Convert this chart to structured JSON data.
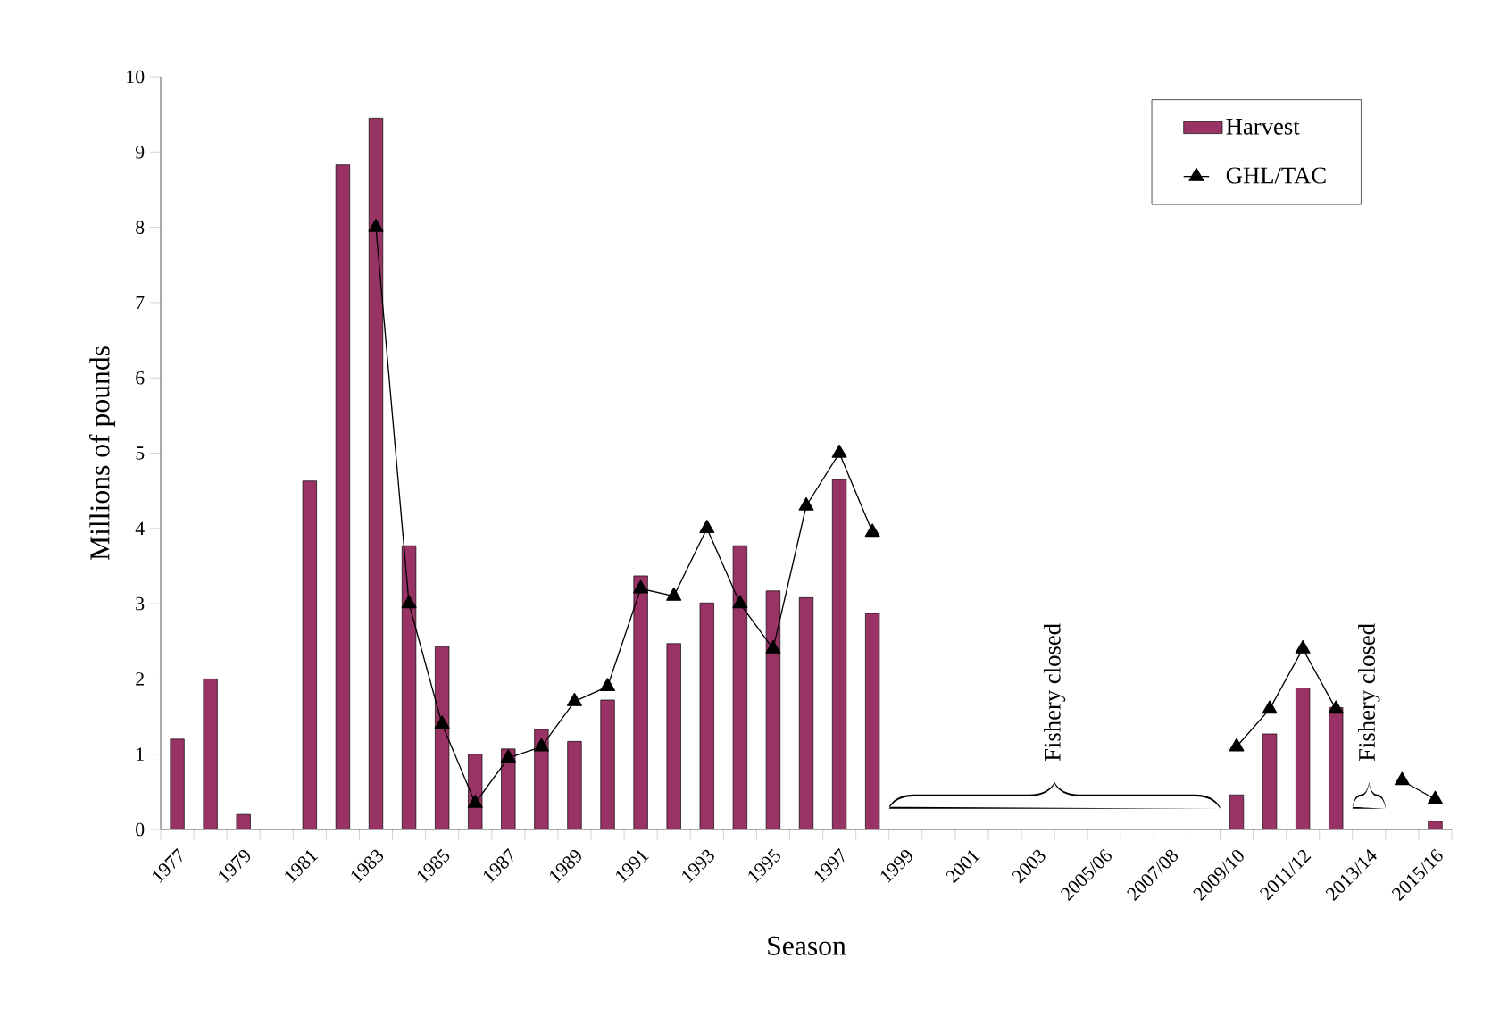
{
  "chart_data": {
    "type": "bar",
    "xlabel": "Season",
    "ylabel": "Millions of pounds",
    "categories": [
      "1977",
      null,
      "1979",
      null,
      "1981",
      null,
      "1983",
      null,
      "1985",
      null,
      "1987",
      null,
      "1989",
      null,
      "1991",
      null,
      "1993",
      null,
      "1995",
      null,
      "1997",
      null,
      "1999",
      null,
      "2001",
      null,
      "2003",
      null,
      "2005/06",
      null,
      "2007/08",
      null,
      "2009/10",
      null,
      "2011/12",
      null,
      "2013/14",
      null,
      "2015/16"
    ],
    "series": [
      {
        "name": "Harvest",
        "type": "bar",
        "color": "#993366",
        "values": [
          1.2,
          2.0,
          0.2,
          null,
          4.63,
          8.83,
          9.45,
          3.77,
          2.43,
          1.0,
          1.07,
          1.33,
          1.17,
          1.72,
          3.37,
          2.47,
          3.01,
          3.77,
          3.17,
          3.08,
          4.65,
          2.87,
          null,
          null,
          null,
          null,
          null,
          null,
          null,
          null,
          null,
          null,
          0.46,
          1.27,
          1.88,
          1.62,
          null,
          null,
          0.11
        ]
      },
      {
        "name": "GHL/TAC",
        "type": "line",
        "color": "#000000",
        "marker": "triangle",
        "values": [
          null,
          null,
          null,
          null,
          null,
          null,
          8.0,
          3.0,
          1.4,
          0.35,
          0.95,
          1.1,
          1.7,
          1.9,
          3.2,
          3.1,
          4.0,
          3.0,
          2.4,
          4.3,
          5.0,
          3.95,
          null,
          null,
          null,
          null,
          null,
          null,
          null,
          null,
          null,
          null,
          1.1,
          1.6,
          2.4,
          1.6,
          null,
          0.65,
          0.4
        ]
      }
    ],
    "annotations": [
      "Fishery closed",
      "Fishery closed"
    ],
    "ylim": [
      0,
      10
    ],
    "yticks": [
      0,
      1,
      2,
      3,
      4,
      5,
      6,
      7,
      8,
      9,
      10
    ],
    "legend": "top right",
    "grid": false
  }
}
